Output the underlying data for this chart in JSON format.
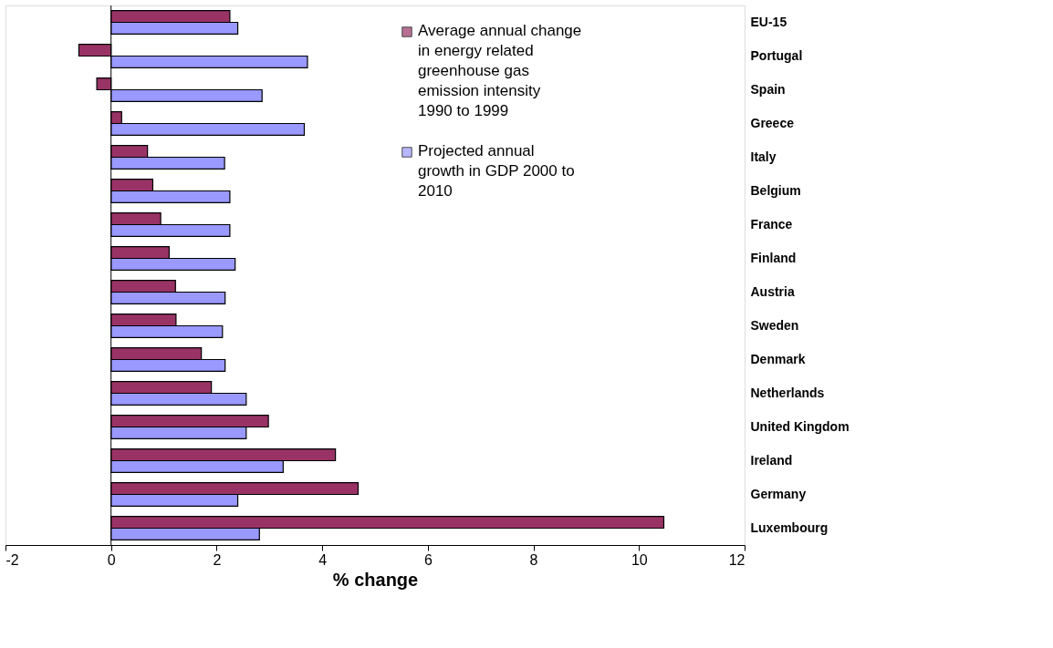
{
  "chart_data": {
    "type": "bar",
    "orientation": "horizontal",
    "xlabel": "% change",
    "categories": [
      "EU-15",
      "Portugal",
      "Spain",
      "Greece",
      "Italy",
      "Belgium",
      "France",
      "Finland",
      "Austria",
      "Sweden",
      "Denmark",
      "Netherlands",
      "United Kingdom",
      "Ireland",
      "Germany",
      "Luxembourg"
    ],
    "series": [
      {
        "name": "Average annual change in energy related greenhouse gas emission intensity 1990 to 1999",
        "color": "#993366",
        "values": [
          2.25,
          -0.61,
          -0.27,
          0.2,
          0.69,
          0.79,
          0.94,
          1.1,
          1.22,
          1.23,
          1.71,
          1.9,
          2.98,
          4.25,
          4.68,
          10.47
        ]
      },
      {
        "name": "Projected annual growth in GDP 2000 to 2010",
        "color": "#9999ff",
        "values": [
          2.4,
          3.72,
          2.86,
          3.66,
          2.15,
          2.25,
          2.25,
          2.35,
          2.16,
          2.11,
          2.16,
          2.56,
          2.56,
          3.26,
          2.4,
          2.81
        ]
      }
    ],
    "xlim": [
      -2,
      12
    ],
    "xticks": [
      -2,
      0,
      2,
      4,
      6,
      8,
      10,
      12
    ],
    "legend": "top right"
  }
}
